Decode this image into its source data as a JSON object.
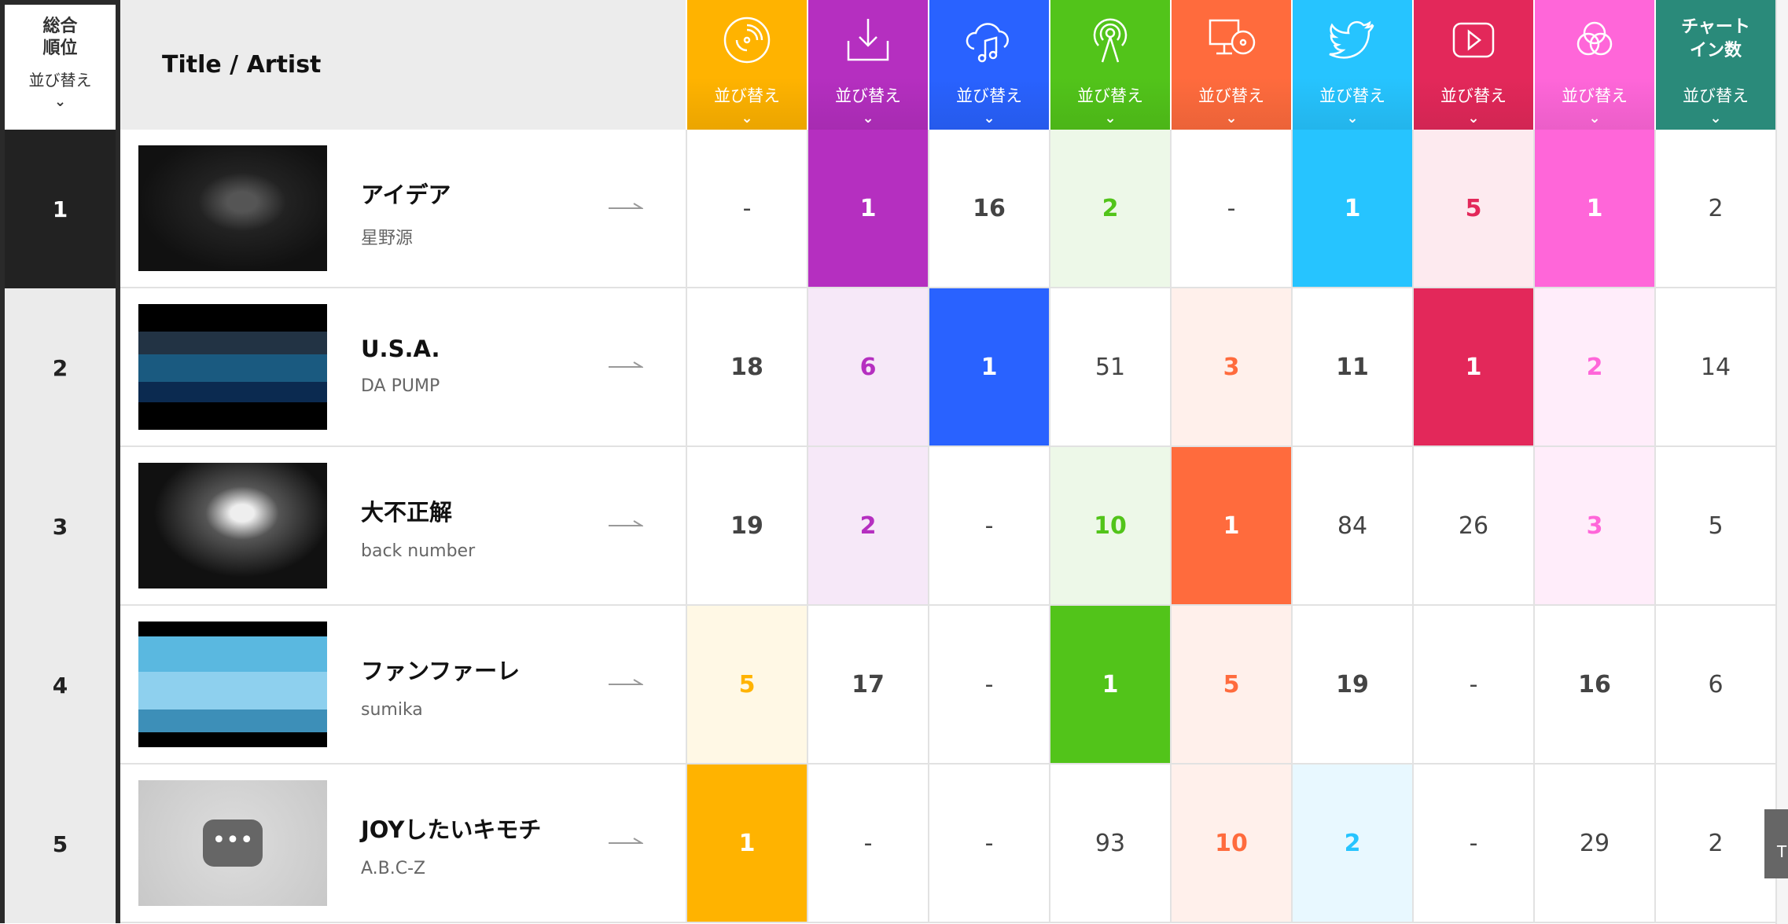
{
  "header": {
    "rank_label": "総合\n順位",
    "title_label": "Title / Artist",
    "sort_label": "並び替え",
    "chart_in_label": "チャート\nイン数"
  },
  "columns": [
    {
      "key": "cd",
      "icon": "cd-icon",
      "color": "#ffb300",
      "tint": "#fff8e5"
    },
    {
      "key": "download",
      "icon": "download-icon",
      "color": "#b52fc0",
      "tint": "#f6e8f8"
    },
    {
      "key": "streaming",
      "icon": "cloud-music-icon",
      "color": "#2962ff",
      "tint": "#e8eeff"
    },
    {
      "key": "radio",
      "icon": "radio-antenna-icon",
      "color": "#52c41a",
      "tint": "#edf8e8"
    },
    {
      "key": "pc",
      "icon": "pc-cd-icon",
      "color": "#ff6b3d",
      "tint": "#fff0eb"
    },
    {
      "key": "twitter",
      "icon": "twitter-icon",
      "color": "#26c4ff",
      "tint": "#e8f8ff"
    },
    {
      "key": "youtube",
      "icon": "youtube-icon",
      "color": "#e3285a",
      "tint": "#fdeaef"
    },
    {
      "key": "gyao",
      "icon": "venn-circles-icon",
      "color": "#ff66d9",
      "tint": "#ffedfa"
    },
    {
      "key": "chart_in",
      "icon": "",
      "color": "#2a8a7a",
      "tint": "#ffffff"
    }
  ],
  "rows": [
    {
      "rank": "1",
      "title": "アイデア",
      "artist": "星野源",
      "values": [
        "-",
        "1",
        "16",
        "2",
        "-",
        "1",
        "5",
        "1",
        "2"
      ]
    },
    {
      "rank": "2",
      "title": "U.S.A.",
      "artist": "DA PUMP",
      "values": [
        "18",
        "6",
        "1",
        "51",
        "3",
        "11",
        "1",
        "2",
        "14"
      ]
    },
    {
      "rank": "3",
      "title": "大不正解",
      "artist": "back number",
      "values": [
        "19",
        "2",
        "-",
        "10",
        "1",
        "84",
        "26",
        "3",
        "5"
      ]
    },
    {
      "rank": "4",
      "title": "ファンファーレ",
      "artist": "sumika",
      "values": [
        "5",
        "17",
        "-",
        "1",
        "5",
        "19",
        "-",
        "16",
        "6"
      ]
    },
    {
      "rank": "5",
      "title": "JOYしたいキモチ",
      "artist": "A.B.C-Z",
      "values": [
        "1",
        "-",
        "-",
        "93",
        "10",
        "2",
        "-",
        "29",
        "2"
      ]
    }
  ],
  "scroll_tab": "T"
}
